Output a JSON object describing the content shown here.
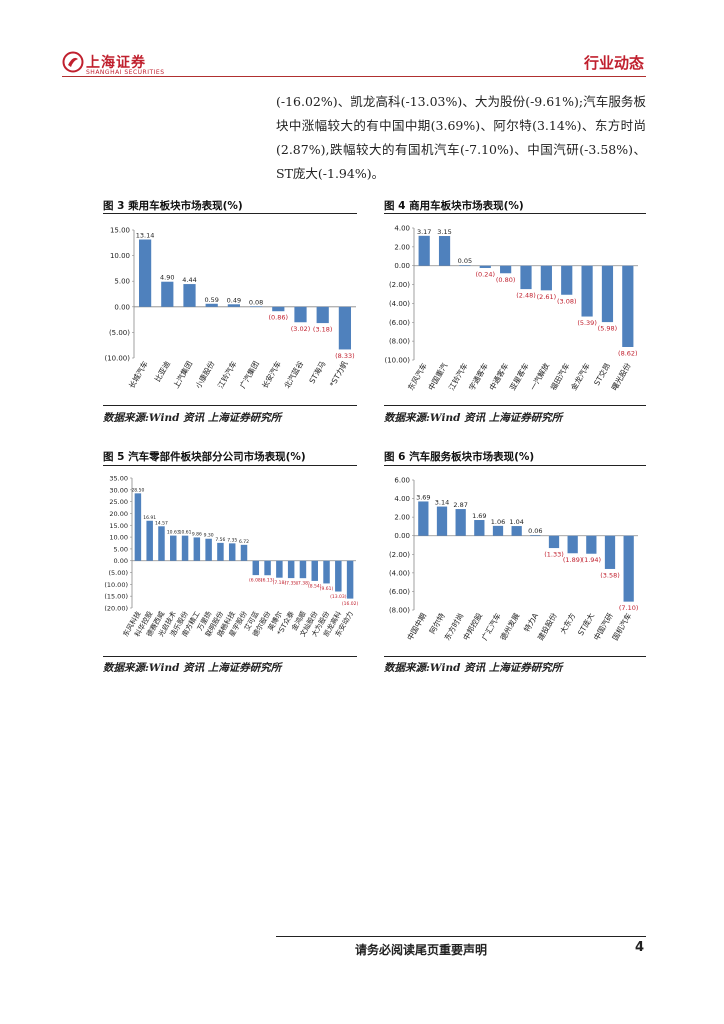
{
  "header": {
    "logo_text": "上海证券",
    "logo_subtext": "SHANGHAI SECURITIES",
    "section_title": "行业动态"
  },
  "paragraph": "(-16.02%)、凯龙高科(-13.03%)、大为股份(-9.61%);汽车服务板块中涨幅较大的有中国中期(3.69%)、阿尔特(3.14%)、东方时尚(2.87%),跌幅较大的有国机汽车(-7.10%)、中国汽研(-3.58%)、ST庞大(-1.94%)。",
  "figures": [
    {
      "title": "图 3 乘用车板块市场表现(%)",
      "source": "数据来源:Wind 资讯 上海证券研究所"
    },
    {
      "title": "图 4 商用车板块市场表现(%)",
      "source": "数据来源:Wind 资讯 上海证券研究所"
    },
    {
      "title": "图 5 汽车零部件板块部分公司市场表现(%)",
      "source": "数据来源:Wind 资讯 上海证券研究所"
    },
    {
      "title": "图 6 汽车服务板块市场表现(%)",
      "source": "数据来源:Wind 资讯 上海证券研究所"
    }
  ],
  "colors": {
    "bar": "#4f81bd",
    "negative_label": "#c0202e",
    "brand": "#c0202e"
  },
  "chart_data": [
    {
      "type": "bar",
      "title": "图 3 乘用车板块市场表现(%)",
      "categories": [
        "长城汽车",
        "比亚迪",
        "上汽集团",
        "小康股份",
        "江铃汽车",
        "广汽集团",
        "长安汽车",
        "北汽蓝谷",
        "ST海马",
        "*ST力帆"
      ],
      "values": [
        13.14,
        4.9,
        4.44,
        0.59,
        0.49,
        0.08,
        -0.86,
        -3.02,
        -3.18,
        -8.33
      ],
      "labels": [
        "13.14",
        "4.90",
        "4.44",
        "0.59",
        "0.49",
        "0.08",
        "(0.86)",
        "(3.02)",
        "(3.18)",
        "(8.33)"
      ],
      "ylim": [
        -10,
        15
      ],
      "ticks": [
        15,
        10,
        5,
        0,
        -5,
        -10
      ],
      "tick_labels": [
        "15.00",
        "10.00",
        "5.00",
        "0.00",
        "(5.00)",
        "(10.00)"
      ]
    },
    {
      "type": "bar",
      "title": "图 4 商用车板块市场表现(%)",
      "categories": [
        "东风汽车",
        "中国重汽",
        "江铃汽车",
        "宇通客车",
        "中通客车",
        "亚星客车",
        "一汽解放",
        "福田汽车",
        "金龙汽车",
        "ST交昂",
        "曙光股份"
      ],
      "values": [
        3.17,
        3.15,
        0.05,
        -0.24,
        -0.8,
        -2.48,
        -2.61,
        -3.08,
        -5.39,
        -5.98,
        -8.62
      ],
      "labels": [
        "3.17",
        "3.15",
        "0.05",
        "(0.24)",
        "(0.80)",
        "(2.48)",
        "(2.61)",
        "(3.08)",
        "(5.39)",
        "(5.98)",
        "(8.62)"
      ],
      "ylim": [
        -10,
        4
      ],
      "ticks": [
        4,
        2,
        0,
        -2,
        -4,
        -6,
        -8,
        -10
      ],
      "tick_labels": [
        "4.00",
        "2.00",
        "0.00",
        "(2.00)",
        "(4.00)",
        "(6.00)",
        "(8.00)",
        "(10.00)"
      ]
    },
    {
      "type": "bar",
      "title": "图 5 汽车零部件板块部分公司市场表现(%)",
      "categories": [
        "东风科技",
        "科华控股",
        "德赛西威",
        "光启技术",
        "浩乐股份",
        "南方精工",
        "万里扬",
        "联明股份",
        "路畅科技",
        "星宇股份",
        "艾可蓝",
        "德尔股份",
        "英博尔",
        "*ST众泰",
        "金鸿顺",
        "文灿股份",
        "大为股份",
        "凯龙高科",
        "东安动力"
      ],
      "values": [
        28.5,
        16.91,
        14.57,
        10.63,
        10.61,
        9.86,
        9.3,
        7.56,
        7.35,
        6.72,
        -6.08,
        -6.13,
        -7.18,
        -7.35,
        -7.38,
        -8.54,
        -9.61,
        -13.03,
        -16.02
      ],
      "labels": [
        "28.50",
        "16.91",
        "14.57",
        "10.63",
        "10.61",
        "9.86",
        "9.30",
        "7.56",
        "7.35",
        "6.72",
        "(6.08)",
        "(6.13)",
        "(7.18)",
        "(7.35)",
        "(7.38)",
        "(8.54)",
        "(9.61)",
        "(13.03)",
        "(16.02)"
      ],
      "ylim": [
        -20,
        35
      ],
      "ticks": [
        35,
        30,
        25,
        20,
        15,
        10,
        5,
        0,
        -5,
        -10,
        -15,
        -20
      ],
      "tick_labels": [
        "35.00",
        "30.00",
        "25.00",
        "20.00",
        "15.00",
        "10.00",
        "5.00",
        "0.00",
        "(5.00)",
        "(10.00)",
        "(15.00)",
        "(20.00)"
      ]
    },
    {
      "type": "bar",
      "title": "图 6 汽车服务板块市场表现(%)",
      "categories": [
        "中国中期",
        "阿尔特",
        "东方时尚",
        "中邦控股",
        "广汇汽车",
        "德州发展",
        "特力A",
        "建投股份",
        "大东方",
        "ST庞大",
        "中国汽研",
        "国机汽车"
      ],
      "values": [
        3.69,
        3.14,
        2.87,
        1.69,
        1.06,
        1.04,
        0.06,
        -1.33,
        -1.89,
        -1.94,
        -3.58,
        -7.1
      ],
      "labels": [
        "3.69",
        "3.14",
        "2.87",
        "1.69",
        "1.06",
        "1.04",
        "0.06",
        "(1.33)",
        "(1.89)",
        "(1.94)",
        "(3.58)",
        "(7.10)"
      ],
      "ylim": [
        -8,
        6
      ],
      "ticks": [
        6,
        4,
        2,
        0,
        -2,
        -4,
        -6,
        -8
      ],
      "tick_labels": [
        "6.00",
        "4.00",
        "2.00",
        "0.00",
        "(2.00)",
        "(4.00)",
        "(6.00)",
        "(8.00)"
      ]
    }
  ],
  "footer": {
    "disclaimer": "请务必阅读尾页重要声明",
    "page_number": "4"
  }
}
